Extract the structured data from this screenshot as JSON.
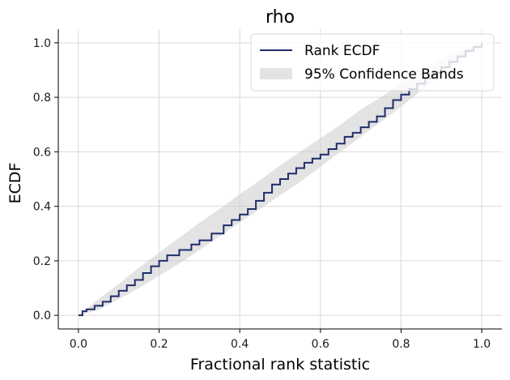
{
  "chart_data": {
    "type": "line",
    "title": "rho",
    "xlabel": "Fractional rank statistic",
    "ylabel": "ECDF",
    "xlim": [
      -0.05,
      1.05
    ],
    "ylim": [
      -0.05,
      1.05
    ],
    "xticks": [
      "0.0",
      "0.2",
      "0.4",
      "0.6",
      "0.8",
      "1.0"
    ],
    "yticks": [
      "0.0",
      "0.2",
      "0.4",
      "0.6",
      "0.8",
      "1.0"
    ],
    "grid": true,
    "legend_position": "top-right",
    "series": [
      {
        "name": "Rank ECDF",
        "color": "#1f2d6b",
        "x": [
          0.0,
          0.01,
          0.02,
          0.04,
          0.06,
          0.08,
          0.1,
          0.12,
          0.14,
          0.16,
          0.18,
          0.2,
          0.22,
          0.25,
          0.28,
          0.3,
          0.33,
          0.36,
          0.38,
          0.4,
          0.42,
          0.44,
          0.46,
          0.48,
          0.5,
          0.52,
          0.54,
          0.56,
          0.58,
          0.6,
          0.62,
          0.64,
          0.66,
          0.68,
          0.7,
          0.72,
          0.74,
          0.76,
          0.78,
          0.8,
          0.82,
          0.84,
          0.86,
          0.88,
          0.9,
          0.92,
          0.94,
          0.96,
          0.98,
          1.0
        ],
        "y": [
          0.0,
          0.015,
          0.022,
          0.035,
          0.05,
          0.07,
          0.09,
          0.11,
          0.13,
          0.155,
          0.18,
          0.2,
          0.22,
          0.24,
          0.26,
          0.275,
          0.3,
          0.33,
          0.35,
          0.37,
          0.39,
          0.42,
          0.45,
          0.48,
          0.5,
          0.52,
          0.54,
          0.56,
          0.575,
          0.59,
          0.61,
          0.63,
          0.655,
          0.67,
          0.69,
          0.71,
          0.73,
          0.76,
          0.79,
          0.81,
          0.83,
          0.85,
          0.87,
          0.89,
          0.91,
          0.93,
          0.95,
          0.97,
          0.985,
          1.0
        ]
      },
      {
        "name": "95% Confidence Bands",
        "color": "#cccccc",
        "x": [
          0.0,
          0.05,
          0.1,
          0.15,
          0.2,
          0.25,
          0.3,
          0.35,
          0.4,
          0.45,
          0.5,
          0.55,
          0.6,
          0.65,
          0.7,
          0.75,
          0.8,
          0.85,
          0.9,
          0.95,
          1.0
        ],
        "lower": [
          0.0,
          0.02,
          0.06,
          0.1,
          0.145,
          0.19,
          0.24,
          0.29,
          0.34,
          0.39,
          0.44,
          0.49,
          0.545,
          0.6,
          0.655,
          0.71,
          0.765,
          0.825,
          0.88,
          0.94,
          1.0
        ],
        "upper": [
          0.0,
          0.06,
          0.115,
          0.175,
          0.23,
          0.285,
          0.34,
          0.39,
          0.445,
          0.495,
          0.55,
          0.6,
          0.65,
          0.7,
          0.755,
          0.8,
          0.85,
          0.9,
          0.94,
          0.975,
          1.0
        ]
      }
    ]
  }
}
